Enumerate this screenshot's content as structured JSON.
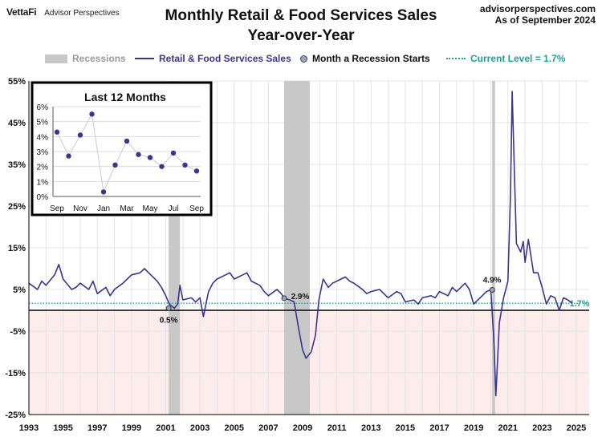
{
  "header": {
    "brand_logo": "VettaFi",
    "brand_name": "Advisor Perspectives",
    "title_line1": "Monthly Retail & Food Services Sales",
    "title_line2": "Year-over-Year",
    "source_site": "advisorperspectives.com",
    "source_date": "As of September 2024"
  },
  "legend": {
    "recessions": "Recessions",
    "series": "Retail & Food Services Sales",
    "recession_start": "Month a Recession Starts",
    "current_level": "Current Level = 1.7%"
  },
  "colors": {
    "series": "#3b3590",
    "recession": "#c8c8c8",
    "current": "#1aa39a",
    "negative_zone": "#fdecec",
    "recession_label": "#9b9b9b"
  },
  "chart_data": [
    {
      "type": "line",
      "title": "",
      "xlabel": "",
      "ylabel": "",
      "x_range": [
        1993,
        2025.75
      ],
      "ylim": [
        -25,
        55
      ],
      "x_ticks": [
        "1993",
        "1995",
        "1997",
        "1999",
        "2001",
        "2003",
        "2005",
        "2007",
        "2009",
        "2011",
        "2013",
        "2015",
        "2017",
        "2019",
        "2021",
        "2023",
        "2025"
      ],
      "y_ticks": [
        "55%",
        "45%",
        "35%",
        "25%",
        "15%",
        "5%",
        "-5%",
        "-15%",
        "-25%"
      ],
      "grid": true,
      "recessions": [
        [
          2001.17,
          2001.83
        ],
        [
          2007.92,
          2009.42
        ],
        [
          2020.08,
          2020.25
        ]
      ],
      "series": [
        {
          "name": "Retail & Food Services Sales",
          "points": [
            [
              1993.0,
              6.5
            ],
            [
              1993.5,
              5.0
            ],
            [
              1993.75,
              7.0
            ],
            [
              1994.0,
              6.0
            ],
            [
              1994.5,
              8.5
            ],
            [
              1994.75,
              11.0
            ],
            [
              1995.0,
              7.5
            ],
            [
              1995.5,
              5.0
            ],
            [
              1995.75,
              5.5
            ],
            [
              1996.0,
              6.5
            ],
            [
              1996.5,
              5.0
            ],
            [
              1996.75,
              7.0
            ],
            [
              1997.0,
              4.0
            ],
            [
              1997.5,
              5.5
            ],
            [
              1997.75,
              3.5
            ],
            [
              1998.0,
              5.0
            ],
            [
              1998.5,
              6.5
            ],
            [
              1998.75,
              7.5
            ],
            [
              1999.0,
              8.5
            ],
            [
              1999.5,
              9.0
            ],
            [
              1999.75,
              10.0
            ],
            [
              2000.0,
              9.0
            ],
            [
              2000.5,
              7.0
            ],
            [
              2000.75,
              5.5
            ],
            [
              2001.0,
              3.5
            ],
            [
              2001.2,
              1.5
            ],
            [
              2001.5,
              0.5
            ],
            [
              2001.7,
              1.5
            ],
            [
              2001.83,
              6.0
            ],
            [
              2002.0,
              2.5
            ],
            [
              2002.5,
              3.0
            ],
            [
              2002.75,
              2.0
            ],
            [
              2003.0,
              3.0
            ],
            [
              2003.2,
              -1.5
            ],
            [
              2003.5,
              4.5
            ],
            [
              2003.75,
              6.5
            ],
            [
              2004.0,
              7.5
            ],
            [
              2004.5,
              8.5
            ],
            [
              2004.75,
              9.0
            ],
            [
              2005.0,
              7.5
            ],
            [
              2005.5,
              8.5
            ],
            [
              2005.75,
              9.0
            ],
            [
              2006.0,
              7.0
            ],
            [
              2006.5,
              6.0
            ],
            [
              2006.75,
              4.5
            ],
            [
              2007.0,
              3.5
            ],
            [
              2007.5,
              5.0
            ],
            [
              2007.75,
              4.0
            ],
            [
              2007.92,
              2.9
            ],
            [
              2008.25,
              2.5
            ],
            [
              2008.5,
              2.0
            ],
            [
              2008.75,
              -4.0
            ],
            [
              2009.0,
              -9.5
            ],
            [
              2009.2,
              -11.5
            ],
            [
              2009.5,
              -10.0
            ],
            [
              2009.75,
              -6.0
            ],
            [
              2009.95,
              2.5
            ],
            [
              2010.2,
              7.5
            ],
            [
              2010.5,
              5.5
            ],
            [
              2010.75,
              6.5
            ],
            [
              2011.0,
              7.0
            ],
            [
              2011.5,
              8.0
            ],
            [
              2011.75,
              7.0
            ],
            [
              2012.0,
              6.5
            ],
            [
              2012.5,
              5.0
            ],
            [
              2012.75,
              4.0
            ],
            [
              2013.0,
              4.5
            ],
            [
              2013.5,
              5.0
            ],
            [
              2013.75,
              4.0
            ],
            [
              2014.0,
              3.0
            ],
            [
              2014.5,
              4.5
            ],
            [
              2014.75,
              4.0
            ],
            [
              2015.0,
              2.0
            ],
            [
              2015.5,
              2.5
            ],
            [
              2015.75,
              1.5
            ],
            [
              2016.0,
              3.0
            ],
            [
              2016.5,
              3.5
            ],
            [
              2016.75,
              3.0
            ],
            [
              2017.0,
              4.5
            ],
            [
              2017.5,
              3.5
            ],
            [
              2017.75,
              5.5
            ],
            [
              2018.0,
              4.5
            ],
            [
              2018.5,
              6.5
            ],
            [
              2018.75,
              5.0
            ],
            [
              2019.0,
              1.5
            ],
            [
              2019.5,
              3.5
            ],
            [
              2019.75,
              4.5
            ],
            [
              2020.0,
              4.9
            ],
            [
              2020.17,
              -6.5
            ],
            [
              2020.3,
              -20.5
            ],
            [
              2020.5,
              -3.0
            ],
            [
              2020.75,
              3.0
            ],
            [
              2021.0,
              7.0
            ],
            [
              2021.15,
              28.0
            ],
            [
              2021.25,
              52.5
            ],
            [
              2021.4,
              30.0
            ],
            [
              2021.5,
              16.0
            ],
            [
              2021.75,
              14.0
            ],
            [
              2021.9,
              16.5
            ],
            [
              2022.0,
              11.5
            ],
            [
              2022.2,
              17.0
            ],
            [
              2022.5,
              9.0
            ],
            [
              2022.75,
              9.0
            ],
            [
              2023.0,
              5.5
            ],
            [
              2023.25,
              1.5
            ],
            [
              2023.5,
              3.5
            ],
            [
              2023.75,
              3.0
            ],
            [
              2024.0,
              0.0
            ],
            [
              2024.25,
              3.0
            ],
            [
              2024.5,
              2.5
            ],
            [
              2024.75,
              1.7
            ]
          ]
        }
      ],
      "recession_start_points": [
        [
          2001.17,
          0.5,
          "0.5%"
        ],
        [
          2007.92,
          2.9,
          "2.9%"
        ],
        [
          2020.08,
          4.9,
          "4.9%"
        ]
      ],
      "current_level": 1.7,
      "current_level_label": "1.7%"
    },
    {
      "type": "line",
      "title": "Last 12 Months",
      "ylim": [
        0,
        6
      ],
      "y_ticks": [
        "6%",
        "5%",
        "4%",
        "3%",
        "2%",
        "1%",
        "0%"
      ],
      "categories": [
        "Sep",
        "Oct",
        "Nov",
        "Dec",
        "Jan",
        "Feb",
        "Mar",
        "Apr",
        "May",
        "Jun",
        "Jul",
        "Aug",
        "Sep"
      ],
      "x_tick_labels": [
        "Sep",
        "",
        "Nov",
        "",
        "Jan",
        "",
        "Mar",
        "",
        "May",
        "",
        "Jul",
        "",
        "Sep"
      ],
      "series": [
        {
          "values": [
            4.3,
            2.7,
            4.1,
            5.5,
            0.3,
            2.1,
            3.7,
            2.8,
            2.6,
            2.0,
            2.9,
            2.1,
            1.7
          ]
        }
      ]
    }
  ]
}
